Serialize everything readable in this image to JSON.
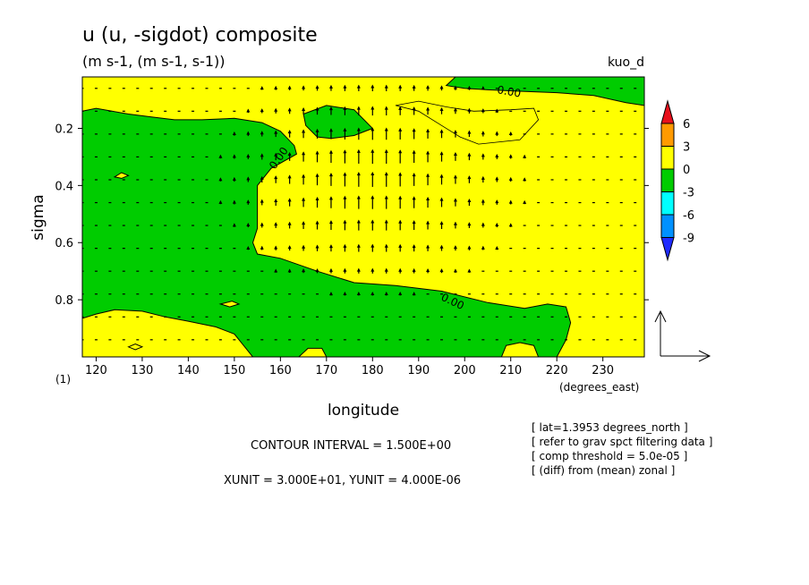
{
  "chart_data": {
    "type": "heatmap",
    "title": "u (u, -sigdot) composite",
    "subtitle": "(m s-1, (m s-1, s-1))",
    "top_right_label": "kuo_d",
    "xlabel": "longitude",
    "ylabel": "sigma",
    "x_units": "(degrees_east)",
    "corner_label": "(1)",
    "xlim": [
      117,
      239
    ],
    "ylim": [
      1.0,
      0.02
    ],
    "x_ticks": [
      {
        "value": 120,
        "label": "120"
      },
      {
        "value": 130,
        "label": "130"
      },
      {
        "value": 140,
        "label": "140"
      },
      {
        "value": 150,
        "label": "150"
      },
      {
        "value": 160,
        "label": "160"
      },
      {
        "value": 170,
        "label": "170"
      },
      {
        "value": 180,
        "label": "180"
      },
      {
        "value": 190,
        "label": "190"
      },
      {
        "value": 200,
        "label": "200"
      },
      {
        "value": 210,
        "label": "210"
      },
      {
        "value": 220,
        "label": "220"
      },
      {
        "value": 230,
        "label": "230"
      }
    ],
    "y_ticks": [
      {
        "value": 0.2,
        "label": "0.2"
      },
      {
        "value": 0.4,
        "label": "0.4"
      },
      {
        "value": 0.6,
        "label": "0.6"
      },
      {
        "value": 0.8,
        "label": "0.8"
      }
    ],
    "colorbar": {
      "labels": [
        "6",
        "3",
        "0",
        "-3",
        "-6",
        "-9"
      ],
      "bins": [
        {
          "range": [
            6,
            null
          ],
          "color": "#e8101c"
        },
        {
          "range": [
            3,
            6
          ],
          "color": "#ff9a00"
        },
        {
          "range": [
            0,
            3
          ],
          "color": "#ffff00"
        },
        {
          "range": [
            -3,
            0
          ],
          "color": "#00cc00"
        },
        {
          "range": [
            -6,
            -3
          ],
          "color": "#00ffff"
        },
        {
          "range": [
            -9,
            -6
          ],
          "color": "#0091ff"
        },
        {
          "range": [
            null,
            -9
          ],
          "color": "#1f2bff"
        }
      ]
    },
    "contour_labels": [
      "0.00",
      "0.00",
      "0.00"
    ],
    "negative_regions": [
      {
        "name": "western-mid-troposphere",
        "polygon": [
          [
            117,
            0.14
          ],
          [
            120,
            0.13
          ],
          [
            127,
            0.15
          ],
          [
            132,
            0.16
          ],
          [
            137,
            0.17
          ],
          [
            143,
            0.17
          ],
          [
            150,
            0.165
          ],
          [
            156,
            0.18
          ],
          [
            160,
            0.21
          ],
          [
            163,
            0.26
          ],
          [
            163.5,
            0.29
          ],
          [
            158,
            0.34
          ],
          [
            155,
            0.4
          ],
          [
            155,
            0.55
          ],
          [
            154,
            0.6
          ],
          [
            155,
            0.64
          ],
          [
            160,
            0.655
          ],
          [
            168,
            0.7
          ],
          [
            176,
            0.74
          ],
          [
            185,
            0.75
          ],
          [
            195,
            0.77
          ],
          [
            205,
            0.81
          ],
          [
            213,
            0.83
          ],
          [
            218,
            0.815
          ],
          [
            222,
            0.825
          ],
          [
            223,
            0.88
          ],
          [
            222,
            0.94
          ],
          [
            220,
            1.0
          ],
          [
            117,
            1.0
          ]
        ]
      },
      {
        "name": "near-top-east",
        "polygon": [
          [
            198,
            0.02
          ],
          [
            239,
            0.02
          ],
          [
            239,
            0.12
          ],
          [
            235,
            0.11
          ],
          [
            228,
            0.085
          ],
          [
            220,
            0.075
          ],
          [
            212,
            0.07
          ],
          [
            205,
            0.065
          ],
          [
            200,
            0.06
          ],
          [
            196,
            0.05
          ]
        ]
      },
      {
        "name": "upper-isolated",
        "polygon": [
          [
            165,
            0.15
          ],
          [
            170,
            0.12
          ],
          [
            176,
            0.135
          ],
          [
            180,
            0.2
          ],
          [
            176,
            0.225
          ],
          [
            171,
            0.235
          ],
          [
            168,
            0.23
          ],
          [
            165.5,
            0.19
          ]
        ]
      }
    ],
    "positive_regions": [
      {
        "name": "lower-west",
        "polygon": [
          [
            117,
            0.865
          ],
          [
            120,
            0.85
          ],
          [
            124,
            0.835
          ],
          [
            130,
            0.84
          ],
          [
            135,
            0.86
          ],
          [
            140,
            0.875
          ],
          [
            146,
            0.895
          ],
          [
            150,
            0.92
          ],
          [
            152,
            0.96
          ],
          [
            154,
            1.0
          ],
          [
            117,
            1.0
          ]
        ]
      },
      {
        "name": "bottom-center-east",
        "polygon": [
          [
            208,
            1.0
          ],
          [
            209,
            0.96
          ],
          [
            212,
            0.95
          ],
          [
            215,
            0.96
          ],
          [
            216,
            1.0
          ]
        ]
      },
      {
        "name": "bottom-small",
        "polygon": [
          [
            164,
            1.0
          ],
          [
            166,
            0.97
          ],
          [
            169,
            0.97
          ],
          [
            170,
            1.0
          ]
        ]
      },
      {
        "name": "upper-left-blob",
        "polygon": [
          [
            124,
            0.37
          ],
          [
            125.5,
            0.355
          ],
          [
            127,
            0.365
          ],
          [
            125.5,
            0.375
          ]
        ]
      },
      {
        "name": "lower-mid-blob",
        "polygon": [
          [
            147,
            0.815
          ],
          [
            149.5,
            0.805
          ],
          [
            151,
            0.815
          ],
          [
            149,
            0.825
          ]
        ]
      },
      {
        "name": "near-bottom-west",
        "polygon": [
          [
            127,
            0.965
          ],
          [
            128.5,
            0.955
          ],
          [
            130,
            0.965
          ],
          [
            128.5,
            0.975
          ]
        ]
      }
    ],
    "contour_line": [
      [
        185,
        0.12
      ],
      [
        190,
        0.105
      ],
      [
        196,
        0.125
      ],
      [
        202,
        0.14
      ],
      [
        210,
        0.135
      ],
      [
        215,
        0.13
      ],
      [
        216,
        0.17
      ],
      [
        212,
        0.24
      ],
      [
        203,
        0.255
      ],
      [
        199,
        0.23
      ],
      [
        195,
        0.19
      ],
      [
        190,
        0.14
      ]
    ],
    "vectors": {
      "rows": [
        0.06,
        0.14,
        0.22,
        0.3,
        0.38,
        0.46,
        0.54,
        0.62,
        0.7,
        0.78,
        0.86,
        0.94
      ],
      "cols": [
        117,
        120,
        123,
        126,
        129,
        132,
        135,
        138,
        141,
        144,
        147,
        150,
        153,
        156,
        159,
        162,
        165,
        168,
        171,
        174,
        177,
        180,
        183,
        186,
        189,
        192,
        195,
        198,
        201,
        204,
        207,
        210,
        213,
        216,
        219,
        222,
        225,
        228,
        231,
        234,
        237
      ],
      "strong_ascent_center": {
        "longitude": 180,
        "sigma": 0.36
      }
    },
    "reference_vector": {
      "x_label": "XUNIT = 3.000E+01",
      "y_label": "YUNIT = 4.000E-06"
    }
  },
  "footer": {
    "contour_interval": "CONTOUR INTERVAL = 1.500E+00",
    "units": "XUNIT = 3.000E+01, YUNIT = 4.000E-06",
    "notes": [
      "[ lat=1.3953 degrees_north ]",
      "[ refer to grav spct filtering data ]",
      "[ comp threshold = 5.0e-05 ]",
      "[ (diff) from (mean) zonal ]"
    ]
  }
}
